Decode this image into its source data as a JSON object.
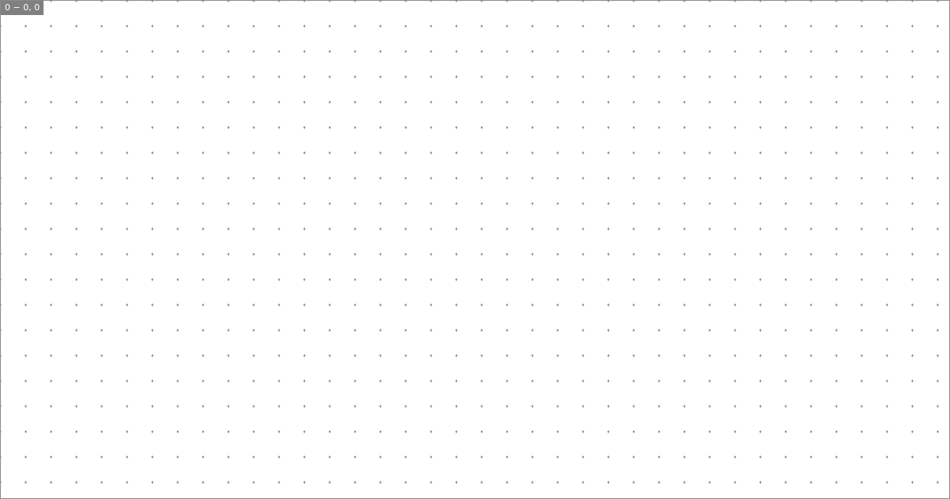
{
  "canvas": {
    "coordinate_readout": "0 − 0, 0",
    "grid_dot_color": "#666666",
    "border_color": "#8a8a8a",
    "readout_background": "#808080"
  }
}
